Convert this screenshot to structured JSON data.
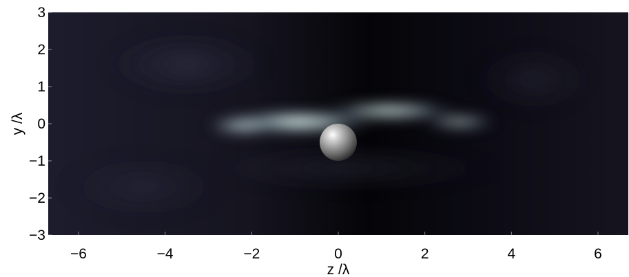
{
  "chart_data": {
    "type": "heatmap",
    "title": "",
    "xlabel": "z /λ",
    "ylabel": "y /λ",
    "xlim": [
      -6.7,
      6.7
    ],
    "ylim": [
      -3,
      3
    ],
    "x_ticks": [
      -6,
      -4,
      -2,
      0,
      2,
      4,
      6
    ],
    "y_ticks": [
      -3,
      -2,
      -1,
      0,
      1,
      2,
      3
    ],
    "x_tick_labels": [
      "−6",
      "−4",
      "−2",
      "0",
      "2",
      "4",
      "6"
    ],
    "y_tick_labels": [
      "−3",
      "−2",
      "−1",
      "0",
      "1",
      "2",
      "3"
    ],
    "colormap": [
      "#000000",
      "#24223a",
      "#5e5c7c",
      "#a6b3c2",
      "#dff1f0"
    ],
    "background_color": "#14131f",
    "grid": false,
    "sphere": {
      "center_z": 0.0,
      "center_y": -0.5,
      "radius": 0.5,
      "color": "#8a8a8a"
    },
    "intensity_features": [
      {
        "z": -0.9,
        "y": 0.05,
        "rz": 1.8,
        "ry": 0.35,
        "level": 0.95
      },
      {
        "z": -2.2,
        "y": -0.05,
        "rz": 0.9,
        "ry": 0.28,
        "level": 0.7
      },
      {
        "z": 1.2,
        "y": 0.35,
        "rz": 1.6,
        "ry": 0.28,
        "level": 0.85
      },
      {
        "z": 2.8,
        "y": 0.05,
        "rz": 0.9,
        "ry": 0.25,
        "level": 0.55
      },
      {
        "z": 0.3,
        "y": -1.2,
        "rz": 3.5,
        "ry": 0.7,
        "level": 0.18
      },
      {
        "z": -3.5,
        "y": 1.6,
        "rz": 2.0,
        "ry": 1.0,
        "level": 0.22
      },
      {
        "z": 4.5,
        "y": 1.2,
        "rz": 1.5,
        "ry": 1.0,
        "level": 0.12
      },
      {
        "z": -4.5,
        "y": -1.7,
        "rz": 2.0,
        "ry": 1.0,
        "level": 0.1
      }
    ]
  }
}
